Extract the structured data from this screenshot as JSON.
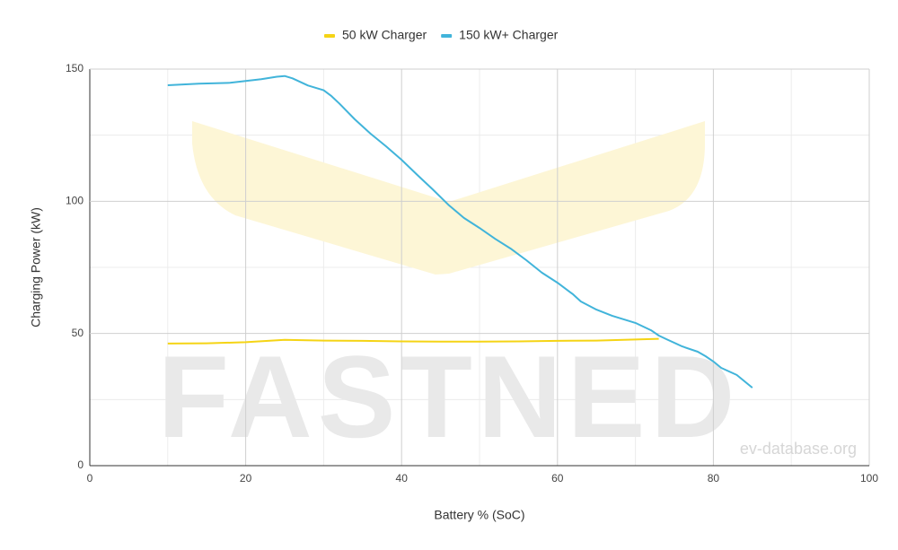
{
  "chart_data": {
    "type": "line",
    "x_label": "Battery % (SoC)",
    "y_label": "Charging Power (kW)",
    "watermark": "FASTNED",
    "source": "ev-database.org",
    "xlim": [
      0,
      100
    ],
    "xticks": [
      0,
      20,
      40,
      60,
      80,
      100
    ],
    "ylim": [
      0,
      150
    ],
    "yticks": [
      0,
      50,
      100,
      150
    ],
    "grid": true,
    "legend": "top",
    "series": [
      {
        "name": "50 kW Charger",
        "color": "#f5d415",
        "x": [
          10,
          15,
          20,
          25,
          30,
          35,
          40,
          45,
          50,
          55,
          60,
          65,
          70,
          73
        ],
        "values": [
          46.2,
          46.3,
          46.7,
          47.6,
          47.3,
          47.2,
          47.0,
          46.9,
          46.9,
          47.0,
          47.2,
          47.3,
          47.7,
          48.0
        ]
      },
      {
        "name": "150 kW+ Charger",
        "color": "#41b4da",
        "x": [
          10,
          14,
          18,
          20,
          22,
          24,
          25,
          26,
          28,
          30,
          31,
          32,
          34,
          36,
          38,
          40,
          42,
          44,
          46,
          48,
          50,
          52,
          54,
          56,
          58,
          60,
          62,
          63,
          65,
          67,
          70,
          72,
          73,
          74,
          76,
          78,
          79,
          80,
          81,
          83,
          85
        ],
        "values": [
          143.9,
          144.5,
          144.8,
          145.5,
          146.2,
          147.1,
          147.4,
          146.5,
          143.8,
          142.0,
          139.8,
          137.0,
          131.0,
          125.6,
          120.8,
          115.7,
          110.0,
          104.5,
          98.7,
          93.7,
          89.9,
          85.8,
          82.1,
          77.7,
          73.0,
          69.2,
          64.8,
          62.1,
          59.0,
          56.7,
          54.0,
          51.2,
          49.2,
          47.8,
          45.1,
          43.1,
          41.4,
          39.4,
          37.0,
          34.3,
          29.5
        ]
      }
    ]
  }
}
